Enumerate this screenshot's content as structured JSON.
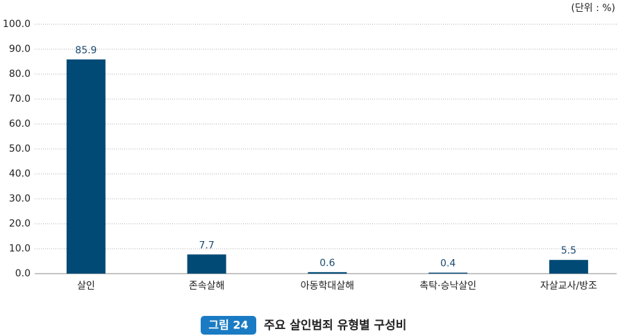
{
  "chart_data": {
    "type": "bar",
    "figure_label": "그림 24",
    "title": "주요 살인범죄 유형별 구성비",
    "unit_label": "(단위 : %)",
    "categories": [
      "살인",
      "존속살해",
      "아동학대살해",
      "촉탁·승낙살인",
      "자살교사/방조"
    ],
    "values": [
      85.9,
      7.7,
      0.6,
      0.4,
      5.5
    ],
    "color": "#004a75",
    "ylim": [
      0,
      100
    ],
    "yticks": [
      {
        "value": 0,
        "label": "0.0"
      },
      {
        "value": 10,
        "label": "10.0"
      },
      {
        "value": 20,
        "label": "20.0"
      },
      {
        "value": 30,
        "label": "30.0"
      },
      {
        "value": 40,
        "label": "40.0"
      },
      {
        "value": 50,
        "label": "50.0"
      },
      {
        "value": 60,
        "label": "60.0"
      },
      {
        "value": 70,
        "label": "70.0"
      },
      {
        "value": 80,
        "label": "80.0"
      },
      {
        "value": 90,
        "label": "90.0"
      },
      {
        "value": 100,
        "label": "100.0"
      }
    ],
    "grid": true
  }
}
